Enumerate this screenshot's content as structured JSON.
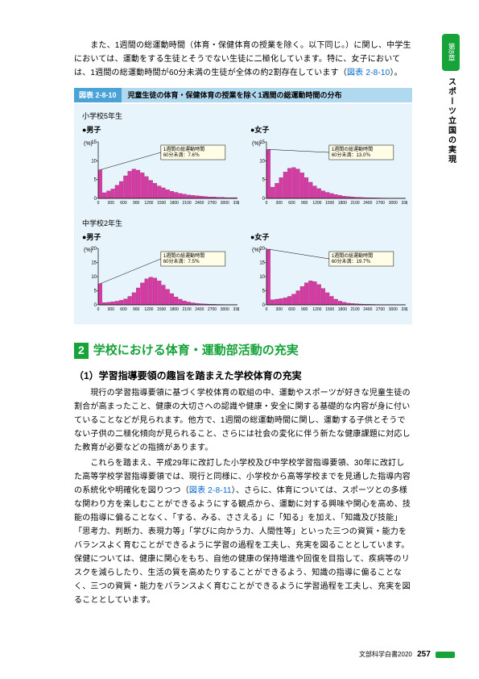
{
  "intro": {
    "p1": "　また、1週間の総運動時間（体育・保健体育の授業を除く。以下同じ。）に関し、中学生においては、運動をする生徒とそうでない生徒に二極化しています。特に、女子においては、1週間の総運動時間が60分未満の生徒が全体の約2割存在しています（",
    "p1_link": "図表 2-8-10",
    "p1_tail": "）。"
  },
  "figure": {
    "tag": "図表 2-8-10",
    "title": "児童生徒の体育・保健体育の授業を除く1週間の総運動時間の分布",
    "group1": "小学校5年生",
    "group2": "中学校2年生",
    "male": "●男子",
    "female": "●女子",
    "y_unit": "(%)",
    "x_unit": "(分)",
    "charts": {
      "es_boy": {
        "note_line1": "1週間の総運動時間",
        "note_line2": "60分未満：7.6％",
        "ymax": 15,
        "yticks": [
          0,
          5,
          10,
          15
        ],
        "xmax": 3300,
        "bars": [
          7.6,
          1.5,
          2,
          2.5,
          3.5,
          4.5,
          6,
          7.2,
          7.8,
          7.5,
          6.8,
          5.8,
          4.8,
          4,
          3.3,
          2.8,
          2.3,
          1.9,
          1.6,
          1.3,
          1.1,
          0.9,
          0.8,
          0.7,
          0.6,
          0.5,
          0.4,
          0.4,
          0.3,
          0.3,
          0.2,
          0.2,
          0.2
        ]
      },
      "es_girl": {
        "note_line1": "1週間の総運動時間",
        "note_line2": "60分未満：13.0％",
        "ymax": 15,
        "yticks": [
          0,
          5,
          10,
          15
        ],
        "xmax": 3300,
        "bars": [
          13,
          3,
          4,
          5.5,
          7,
          8,
          8.2,
          7.8,
          6.8,
          5.5,
          4.3,
          3.3,
          2.6,
          2,
          1.6,
          1.3,
          1,
          0.8,
          0.6,
          0.5,
          0.4,
          0.3,
          0.25,
          0.2,
          0.18,
          0.15,
          0.12,
          0.1,
          0.08,
          0.07,
          0.06,
          0.05,
          0.04
        ]
      },
      "jh_boy": {
        "note_line1": "1週間の総運動時間",
        "note_line2": "60分未満：7.5％",
        "ymax": 20,
        "yticks": [
          0,
          5,
          10,
          15,
          20
        ],
        "xmax": 3300,
        "bars": [
          7.5,
          0.8,
          0.9,
          1.1,
          1.3,
          1.6,
          2.1,
          3,
          4.3,
          6,
          7.8,
          9.2,
          9.8,
          9.5,
          8.5,
          7,
          5.5,
          4,
          2.8,
          2,
          1.4,
          1,
          0.7,
          0.5,
          0.4,
          0.3,
          0.25,
          0.2,
          0.15,
          0.12,
          0.1,
          0.08,
          0.06
        ]
      },
      "jh_girl": {
        "note_line1": "1週間の総運動時間",
        "note_line2": "60分未満：19.7％",
        "ymax": 20,
        "yticks": [
          0,
          5,
          10,
          15,
          20
        ],
        "xmax": 3300,
        "bars": [
          19.7,
          1.8,
          2,
          2.2,
          2.5,
          3,
          3.8,
          5,
          6.5,
          7.8,
          8.5,
          8.2,
          7.2,
          5.8,
          4.3,
          3,
          2,
          1.3,
          0.9,
          0.6,
          0.45,
          0.35,
          0.28,
          0.22,
          0.18,
          0.15,
          0.12,
          0.1,
          0.08,
          0.06,
          0.05,
          0.04,
          0.03
        ]
      }
    },
    "colors": {
      "bar_fill": "#d63ba3",
      "bar_stroke": "#8e1f6c",
      "axis": "#000",
      "note_bg": "#fffde6",
      "note_border": "#000"
    }
  },
  "section": {
    "num": "2",
    "title": "学校における体育・運動部活動の充実",
    "sub1": "（1）学習指導要領の趣旨を踏まえた学校体育の充実",
    "body1": "　現行の学習指導要領に基づく学校体育の取組の中、運動やスポーツが好きな児童生徒の割合が高まったこと、健康の大切さへの認識や健康・安全に関する基礎的な内容が身に付いていることなどが見られます。他方で、1週間の総運動時間に関し、運動する子供とそうでない子供の二極化傾向が見られること、さらには社会の変化に伴う新たな健康課題に対応した教育が必要などの指摘があります。",
    "body2_a": "　これらを踏まえ、平成29年に改訂した小学校及び中学校学習指導要領、30年に改訂した高等学校学習指導要領では、現行と同様に、小学校から高等学校までを見通した指導内容の系統化や明確化を図りつつ（",
    "body2_link": "図表 2-8-11",
    "body2_b": "）、さらに、体育については、スポーツとの多様な関わり方を楽しむことができるようにする観点から、運動に対する興味や関心を高め、技能の指導に偏ることなく、「する、みる、ささえる」に「知る」を加え、「知識及び技能」「思考力、判断力、表現力等」「学びに向かう力、人間性等」といった三つの資質・能力をバランスよく育むことができるように学習の過程を工夫し、充実を図ることとしています。保健については、健康に関心をもち、自他の健康の保持増進や回復を目指して、疾病等のリスクを減らしたり、生活の質を高めたりすることができるよう、知識の指導に偏ることなく、三つの資質・能力をバランスよく育むことができるように学習過程を工夫し、充実を図ることとしています。"
  },
  "side": {
    "chapter": "第8章",
    "text": "スポーツ立国の実現"
  },
  "footer": {
    "src": "文部科学白書2020",
    "page": "257"
  }
}
